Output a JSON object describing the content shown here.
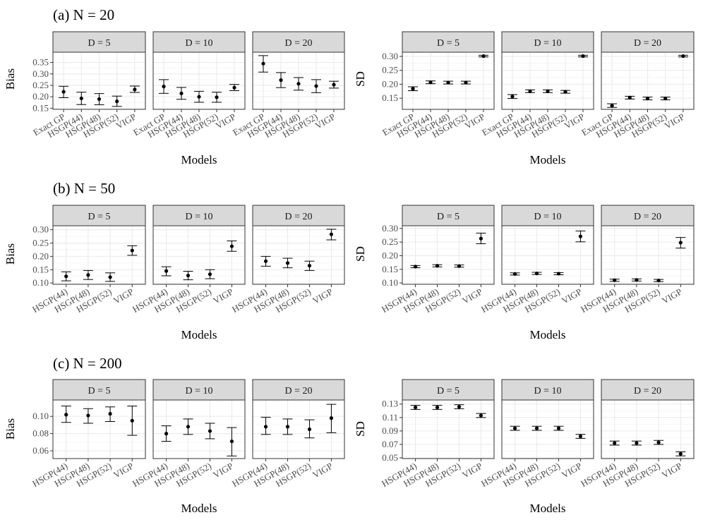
{
  "chart_data": [
    {
      "type": "scatter",
      "title": "(a) N = 20",
      "xlabel": "Models",
      "panel_groups": [
        {
          "ylabel": "Bias",
          "ylim": [
            0.145,
            0.395
          ],
          "yticks": [
            0.15,
            0.2,
            0.25,
            0.3,
            0.35
          ],
          "ytick_labels": [
            "0.15",
            "0.20",
            "0.25",
            "0.30",
            "0.35"
          ],
          "categories": [
            "Exact GP",
            "HSGP(44)",
            "HSGP(48)",
            "HSGP(52)",
            "VIGP"
          ],
          "panels": [
            {
              "facet": "D = 5",
              "points": [
                {
                  "mean": 0.222,
                  "lo": 0.196,
                  "hi": 0.246
                },
                {
                  "mean": 0.193,
                  "lo": 0.166,
                  "hi": 0.22
                },
                {
                  "mean": 0.19,
                  "lo": 0.165,
                  "hi": 0.214
                },
                {
                  "mean": 0.18,
                  "lo": 0.158,
                  "hi": 0.203
                },
                {
                  "mean": 0.232,
                  "lo": 0.219,
                  "hi": 0.247
                }
              ]
            },
            {
              "facet": "D = 10",
              "points": [
                {
                  "mean": 0.245,
                  "lo": 0.215,
                  "hi": 0.275
                },
                {
                  "mean": 0.215,
                  "lo": 0.189,
                  "hi": 0.241
                },
                {
                  "mean": 0.2,
                  "lo": 0.176,
                  "hi": 0.224
                },
                {
                  "mean": 0.198,
                  "lo": 0.176,
                  "hi": 0.22
                },
                {
                  "mean": 0.24,
                  "lo": 0.227,
                  "hi": 0.254
                }
              ]
            },
            {
              "facet": "D = 20",
              "points": [
                {
                  "mean": 0.345,
                  "lo": 0.308,
                  "hi": 0.38
                },
                {
                  "mean": 0.273,
                  "lo": 0.24,
                  "hi": 0.306
                },
                {
                  "mean": 0.257,
                  "lo": 0.229,
                  "hi": 0.284
                },
                {
                  "mean": 0.247,
                  "lo": 0.218,
                  "hi": 0.275
                },
                {
                  "mean": 0.253,
                  "lo": 0.238,
                  "hi": 0.268
                }
              ]
            }
          ]
        },
        {
          "ylabel": "SD",
          "ylim": [
            0.11,
            0.315
          ],
          "yticks": [
            0.15,
            0.2,
            0.25,
            0.3
          ],
          "ytick_labels": [
            "0.15",
            "0.20",
            "0.25",
            "0.30"
          ],
          "categories": [
            "Exact GP",
            "HSGP(44)",
            "HSGP(48)",
            "HSGP(52)",
            "VIGP"
          ],
          "panels": [
            {
              "facet": "D = 5",
              "points": [
                {
                  "mean": 0.184,
                  "lo": 0.177,
                  "hi": 0.191
                },
                {
                  "mean": 0.207,
                  "lo": 0.202,
                  "hi": 0.212
                },
                {
                  "mean": 0.206,
                  "lo": 0.201,
                  "hi": 0.211
                },
                {
                  "mean": 0.206,
                  "lo": 0.201,
                  "hi": 0.211
                },
                {
                  "mean": 0.301,
                  "lo": 0.298,
                  "hi": 0.304
                }
              ]
            },
            {
              "facet": "D = 10",
              "points": [
                {
                  "mean": 0.156,
                  "lo": 0.149,
                  "hi": 0.163
                },
                {
                  "mean": 0.175,
                  "lo": 0.17,
                  "hi": 0.18
                },
                {
                  "mean": 0.175,
                  "lo": 0.17,
                  "hi": 0.18
                },
                {
                  "mean": 0.173,
                  "lo": 0.168,
                  "hi": 0.178
                },
                {
                  "mean": 0.301,
                  "lo": 0.298,
                  "hi": 0.304
                }
              ]
            },
            {
              "facet": "D = 20",
              "points": [
                {
                  "mean": 0.123,
                  "lo": 0.117,
                  "hi": 0.13
                },
                {
                  "mean": 0.152,
                  "lo": 0.147,
                  "hi": 0.157
                },
                {
                  "mean": 0.149,
                  "lo": 0.144,
                  "hi": 0.154
                },
                {
                  "mean": 0.149,
                  "lo": 0.144,
                  "hi": 0.154
                },
                {
                  "mean": 0.301,
                  "lo": 0.298,
                  "hi": 0.304
                }
              ]
            }
          ]
        }
      ]
    },
    {
      "type": "scatter",
      "title": "(b) N = 50",
      "xlabel": "Models",
      "panel_groups": [
        {
          "ylabel": "Bias",
          "ylim": [
            0.095,
            0.315
          ],
          "yticks": [
            0.1,
            0.15,
            0.2,
            0.25,
            0.3
          ],
          "ytick_labels": [
            "0.10",
            "0.15",
            "0.20",
            "0.25",
            "0.30"
          ],
          "categories": [
            "HSGP(44)",
            "HSGP(48)",
            "HSGP(52)",
            "VIGP"
          ],
          "panels": [
            {
              "facet": "D = 5",
              "points": [
                {
                  "mean": 0.125,
                  "lo": 0.108,
                  "hi": 0.142
                },
                {
                  "mean": 0.13,
                  "lo": 0.113,
                  "hi": 0.147
                },
                {
                  "mean": 0.122,
                  "lo": 0.106,
                  "hi": 0.138
                },
                {
                  "mean": 0.222,
                  "lo": 0.204,
                  "hi": 0.24
                }
              ]
            },
            {
              "facet": "D = 10",
              "points": [
                {
                  "mean": 0.145,
                  "lo": 0.127,
                  "hi": 0.161
                },
                {
                  "mean": 0.128,
                  "lo": 0.112,
                  "hi": 0.144
                },
                {
                  "mean": 0.133,
                  "lo": 0.116,
                  "hi": 0.15
                },
                {
                  "mean": 0.238,
                  "lo": 0.219,
                  "hi": 0.258
                }
              ]
            },
            {
              "facet": "D = 20",
              "points": [
                {
                  "mean": 0.182,
                  "lo": 0.163,
                  "hi": 0.2
                },
                {
                  "mean": 0.175,
                  "lo": 0.157,
                  "hi": 0.193
                },
                {
                  "mean": 0.165,
                  "lo": 0.147,
                  "hi": 0.182
                },
                {
                  "mean": 0.283,
                  "lo": 0.262,
                  "hi": 0.302
                }
              ]
            }
          ]
        },
        {
          "ylabel": "SD",
          "ylim": [
            0.095,
            0.31
          ],
          "yticks": [
            0.1,
            0.15,
            0.2,
            0.25,
            0.3
          ],
          "ytick_labels": [
            "0.10",
            "0.15",
            "0.20",
            "0.25",
            "0.30"
          ],
          "categories": [
            "HSGP(44)",
            "HSGP(48)",
            "HSGP(52)",
            "VIGP"
          ],
          "panels": [
            {
              "facet": "D = 5",
              "points": [
                {
                  "mean": 0.16,
                  "lo": 0.156,
                  "hi": 0.164
                },
                {
                  "mean": 0.163,
                  "lo": 0.159,
                  "hi": 0.167
                },
                {
                  "mean": 0.162,
                  "lo": 0.158,
                  "hi": 0.166
                },
                {
                  "mean": 0.263,
                  "lo": 0.244,
                  "hi": 0.283
                }
              ]
            },
            {
              "facet": "D = 10",
              "points": [
                {
                  "mean": 0.133,
                  "lo": 0.129,
                  "hi": 0.137
                },
                {
                  "mean": 0.135,
                  "lo": 0.131,
                  "hi": 0.139
                },
                {
                  "mean": 0.134,
                  "lo": 0.13,
                  "hi": 0.138
                },
                {
                  "mean": 0.271,
                  "lo": 0.251,
                  "hi": 0.291
                }
              ]
            },
            {
              "facet": "D = 20",
              "points": [
                {
                  "mean": 0.11,
                  "lo": 0.106,
                  "hi": 0.114
                },
                {
                  "mean": 0.111,
                  "lo": 0.107,
                  "hi": 0.115
                },
                {
                  "mean": 0.109,
                  "lo": 0.105,
                  "hi": 0.113
                },
                {
                  "mean": 0.248,
                  "lo": 0.228,
                  "hi": 0.267
                }
              ]
            }
          ]
        }
      ]
    },
    {
      "type": "scatter",
      "title": "(c) N = 200",
      "xlabel": "Models",
      "panel_groups": [
        {
          "ylabel": "Bias",
          "ylim": [
            0.051,
            0.119
          ],
          "yticks": [
            0.06,
            0.08,
            0.1
          ],
          "ytick_labels": [
            "0.06",
            "0.08",
            "0.10"
          ],
          "categories": [
            "HSGP(44)",
            "HSGP(48)",
            "HSGP(52)",
            "VIGP"
          ],
          "panels": [
            {
              "facet": "D = 5",
              "points": [
                {
                  "mean": 0.102,
                  "lo": 0.093,
                  "hi": 0.112
                },
                {
                  "mean": 0.101,
                  "lo": 0.092,
                  "hi": 0.109
                },
                {
                  "mean": 0.103,
                  "lo": 0.094,
                  "hi": 0.111
                },
                {
                  "mean": 0.095,
                  "lo": 0.078,
                  "hi": 0.112
                }
              ]
            },
            {
              "facet": "D = 10",
              "points": [
                {
                  "mean": 0.08,
                  "lo": 0.071,
                  "hi": 0.089
                },
                {
                  "mean": 0.088,
                  "lo": 0.079,
                  "hi": 0.097
                },
                {
                  "mean": 0.083,
                  "lo": 0.074,
                  "hi": 0.092
                },
                {
                  "mean": 0.071,
                  "lo": 0.054,
                  "hi": 0.087
                }
              ]
            },
            {
              "facet": "D = 20",
              "points": [
                {
                  "mean": 0.088,
                  "lo": 0.079,
                  "hi": 0.099
                },
                {
                  "mean": 0.088,
                  "lo": 0.079,
                  "hi": 0.097
                },
                {
                  "mean": 0.085,
                  "lo": 0.075,
                  "hi": 0.096
                },
                {
                  "mean": 0.098,
                  "lo": 0.081,
                  "hi": 0.114
                }
              ]
            }
          ]
        },
        {
          "ylabel": "SD",
          "ylim": [
            0.049,
            0.136
          ],
          "yticks": [
            0.05,
            0.07,
            0.09,
            0.11,
            0.13
          ],
          "ytick_labels": [
            "0.05",
            "0.07",
            "0.09",
            "0.11",
            "0.13"
          ],
          "categories": [
            "HSGP(44)",
            "HSGP(48)",
            "HSGP(52)",
            "VIGP"
          ],
          "panels": [
            {
              "facet": "D = 5",
              "points": [
                {
                  "mean": 0.125,
                  "lo": 0.122,
                  "hi": 0.128
                },
                {
                  "mean": 0.125,
                  "lo": 0.122,
                  "hi": 0.128
                },
                {
                  "mean": 0.126,
                  "lo": 0.123,
                  "hi": 0.129
                },
                {
                  "mean": 0.113,
                  "lo": 0.11,
                  "hi": 0.116
                }
              ]
            },
            {
              "facet": "D = 10",
              "points": [
                {
                  "mean": 0.094,
                  "lo": 0.091,
                  "hi": 0.097
                },
                {
                  "mean": 0.094,
                  "lo": 0.091,
                  "hi": 0.097
                },
                {
                  "mean": 0.094,
                  "lo": 0.091,
                  "hi": 0.097
                },
                {
                  "mean": 0.082,
                  "lo": 0.079,
                  "hi": 0.085
                }
              ]
            },
            {
              "facet": "D = 20",
              "points": [
                {
                  "mean": 0.072,
                  "lo": 0.069,
                  "hi": 0.075
                },
                {
                  "mean": 0.072,
                  "lo": 0.069,
                  "hi": 0.075
                },
                {
                  "mean": 0.073,
                  "lo": 0.07,
                  "hi": 0.076
                },
                {
                  "mean": 0.056,
                  "lo": 0.053,
                  "hi": 0.059
                }
              ]
            }
          ]
        }
      ]
    }
  ]
}
